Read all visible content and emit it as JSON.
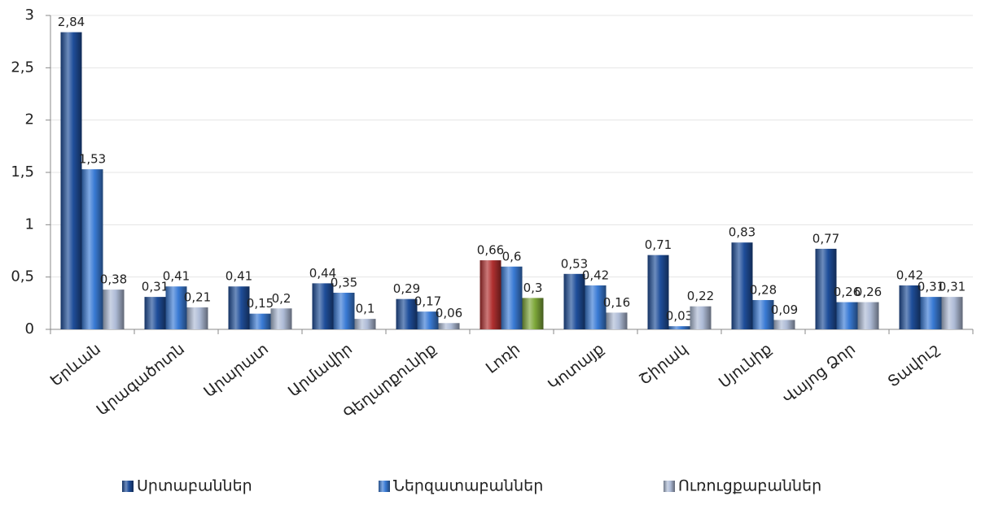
{
  "chart_data": {
    "type": "bar",
    "categories": [
      "Երևան",
      "Արագածոտն",
      "Արարատ",
      "Արմավիր",
      "Գեղարքունիք",
      "Լոռի",
      "Կոտայք",
      "Շիրակ",
      "Սյունիք",
      "Վայոց Ձոր",
      "Տավուշ"
    ],
    "series": [
      {
        "name": "Սրտաբաններ",
        "color": "#1f4e9a",
        "colors": [
          "#1f4e9a",
          "#1f4e9a",
          "#1f4e9a",
          "#1f4e9a",
          "#1f4e9a",
          "#b03030",
          "#1f4e9a",
          "#1f4e9a",
          "#1f4e9a",
          "#1f4e9a",
          "#1f4e9a"
        ],
        "values": [
          2.84,
          0.31,
          0.41,
          0.44,
          0.29,
          0.66,
          0.53,
          0.71,
          0.83,
          0.77,
          0.42
        ],
        "value_labels": [
          "2,84",
          "0,31",
          "0,41",
          "0,44",
          "0,29",
          "0,66",
          "0,53",
          "0,71",
          "0,83",
          "0,77",
          "0,42"
        ]
      },
      {
        "name": "Ներզատաբաններ",
        "color": "#3a7bd5",
        "colors": [
          "#3a7bd5",
          "#3a7bd5",
          "#3a7bd5",
          "#3a7bd5",
          "#3a7bd5",
          "#3a7bd5",
          "#3a7bd5",
          "#3a7bd5",
          "#3a7bd5",
          "#3a7bd5",
          "#3a7bd5"
        ],
        "values": [
          1.53,
          0.41,
          0.15,
          0.35,
          0.17,
          0.6,
          0.42,
          0.03,
          0.28,
          0.26,
          0.31
        ],
        "value_labels": [
          "1,53",
          "0,41",
          "0,15",
          "0,35",
          "0,17",
          "0,6",
          "0,42",
          "0,03",
          "0,28",
          "0,26",
          "0,31"
        ]
      },
      {
        "name": "Ուռուցքաբաններ",
        "color": "#aebbd6",
        "colors": [
          "#aebbd6",
          "#aebbd6",
          "#aebbd6",
          "#aebbd6",
          "#aebbd6",
          "#7ea83a",
          "#aebbd6",
          "#aebbd6",
          "#aebbd6",
          "#aebbd6",
          "#aebbd6"
        ],
        "values": [
          0.38,
          0.21,
          0.2,
          0.1,
          0.06,
          0.3,
          0.16,
          0.22,
          0.09,
          0.26,
          0.31
        ],
        "value_labels": [
          "0,38",
          "0,21",
          "0,2",
          "0,1",
          "0,06",
          "0,3",
          "0,16",
          "0,22",
          "0,09",
          "0,26",
          "0,31"
        ]
      }
    ],
    "ylim": [
      0,
      3
    ],
    "yticks": [
      0,
      {
        "value": 0.5,
        "label": "0,5"
      },
      1,
      {
        "value": 1.5,
        "label": "1,5"
      },
      2,
      {
        "value": 2.5,
        "label": "2,5"
      },
      3
    ],
    "grid": true,
    "legend": "bottom"
  }
}
